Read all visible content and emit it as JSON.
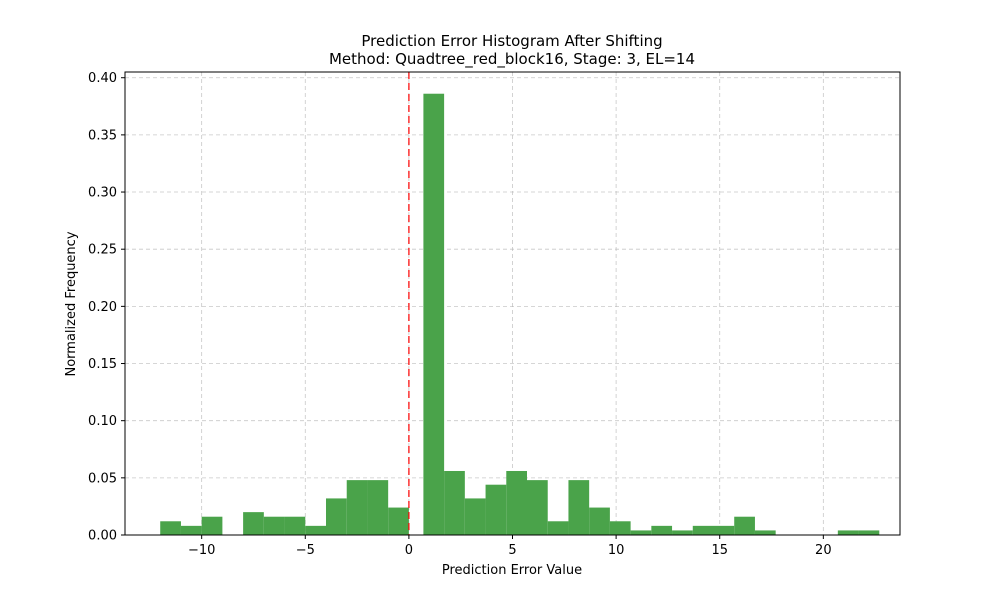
{
  "chart_data": {
    "type": "bar",
    "title": "Prediction Error Histogram After Shifting",
    "subtitle": "Method: Quadtree_red_block16, Stage: 3, EL=14",
    "xlabel": "Prediction Error Value",
    "ylabel": "Normalized Frequency",
    "xlim": [
      -13.7,
      23.7
    ],
    "ylim": [
      0,
      0.405
    ],
    "xticks": [
      -10,
      -5,
      0,
      5,
      10,
      15,
      20
    ],
    "xtick_labels": [
      "−10",
      "−5",
      "0",
      "5",
      "10",
      "15",
      "20"
    ],
    "yticks": [
      0.0,
      0.05,
      0.1,
      0.15,
      0.2,
      0.25,
      0.3,
      0.35,
      0.4
    ],
    "ytick_labels": [
      "0.00",
      "0.05",
      "0.10",
      "0.15",
      "0.20",
      "0.25",
      "0.30",
      "0.35",
      "0.40"
    ],
    "grid": true,
    "bar_color": "#4aa34a",
    "reference_line": {
      "x": 0,
      "color": "#ff0000",
      "style": "dashed"
    },
    "bins": [
      {
        "x0": -12,
        "x1": -11,
        "value": 0.012
      },
      {
        "x0": -11,
        "x1": -10,
        "value": 0.008
      },
      {
        "x0": -10,
        "x1": -9,
        "value": 0.016
      },
      {
        "x0": -9,
        "x1": -8,
        "value": 0.0
      },
      {
        "x0": -8,
        "x1": -7,
        "value": 0.02
      },
      {
        "x0": -7,
        "x1": -6,
        "value": 0.016
      },
      {
        "x0": -6,
        "x1": -5,
        "value": 0.016
      },
      {
        "x0": -5,
        "x1": -4,
        "value": 0.008
      },
      {
        "x0": -4,
        "x1": -3,
        "value": 0.032
      },
      {
        "x0": -3,
        "x1": -2,
        "value": 0.048
      },
      {
        "x0": -2,
        "x1": -1,
        "value": 0.048
      },
      {
        "x0": -1,
        "x1": 0,
        "value": 0.024
      },
      {
        "x0": 0,
        "x1": 0.7,
        "value": 0.0
      },
      {
        "x0": 0.7,
        "x1": 1.7,
        "value": 0.386
      },
      {
        "x0": 1.7,
        "x1": 2.7,
        "value": 0.056
      },
      {
        "x0": 2.7,
        "x1": 3.7,
        "value": 0.032
      },
      {
        "x0": 3.7,
        "x1": 4.7,
        "value": 0.044
      },
      {
        "x0": 4.7,
        "x1": 5.7,
        "value": 0.056
      },
      {
        "x0": 5.7,
        "x1": 6.7,
        "value": 0.048
      },
      {
        "x0": 6.7,
        "x1": 7.7,
        "value": 0.012
      },
      {
        "x0": 7.7,
        "x1": 8.7,
        "value": 0.048
      },
      {
        "x0": 8.7,
        "x1": 9.7,
        "value": 0.024
      },
      {
        "x0": 9.7,
        "x1": 10.7,
        "value": 0.012
      },
      {
        "x0": 10.7,
        "x1": 11.7,
        "value": 0.004
      },
      {
        "x0": 11.7,
        "x1": 12.7,
        "value": 0.008
      },
      {
        "x0": 12.7,
        "x1": 13.7,
        "value": 0.004
      },
      {
        "x0": 13.7,
        "x1": 14.7,
        "value": 0.008
      },
      {
        "x0": 14.7,
        "x1": 15.7,
        "value": 0.008
      },
      {
        "x0": 15.7,
        "x1": 16.7,
        "value": 0.016
      },
      {
        "x0": 16.7,
        "x1": 17.7,
        "value": 0.004
      },
      {
        "x0": 20.7,
        "x1": 21.7,
        "value": 0.004
      },
      {
        "x0": 21.7,
        "x1": 22.7,
        "value": 0.004
      }
    ]
  }
}
